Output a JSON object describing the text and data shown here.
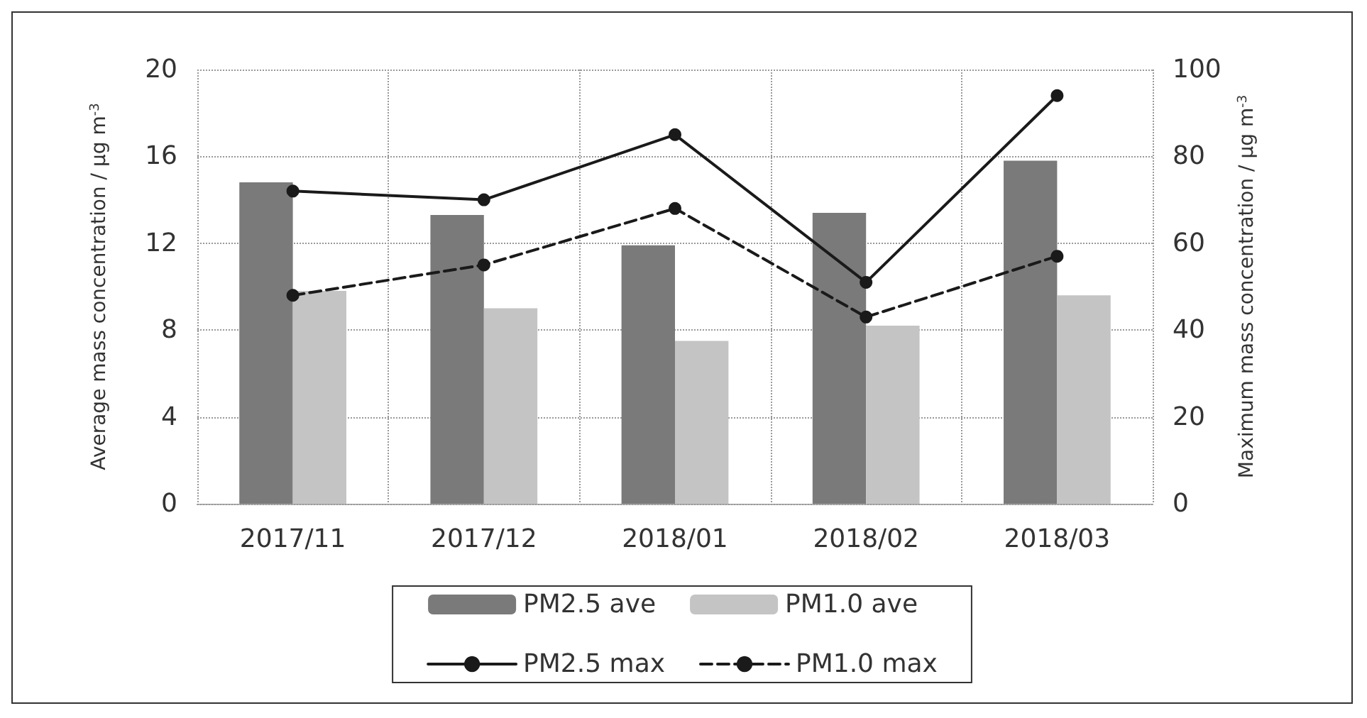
{
  "chart_data": {
    "type": "bar",
    "categories": [
      "2017/11",
      "2017/12",
      "2018/01",
      "2018/02",
      "2018/03"
    ],
    "ylabel": "Average mass concentration / μg m$^{-3}$",
    "y2label": "Maximum mass concentration / μg m$^{-3}$",
    "series": [
      {
        "name": "PM2.5 ave",
        "color": "#7a7a7a",
        "values": [
          14.8,
          13.3,
          11.9,
          13.4,
          15.8
        ]
      },
      {
        "name": "PM1.0 ave",
        "color": "#c4c4c4",
        "values": [
          9.8,
          9.0,
          7.5,
          8.2,
          9.6
        ]
      },
      {
        "name": "PM2.5 max",
        "type": "line",
        "axis": "y2",
        "color": "#1a1a1a",
        "marker": "circle",
        "line_style": "solid",
        "values": [
          72,
          70,
          85,
          51,
          94
        ]
      },
      {
        "name": "PM1.0 max",
        "type": "line",
        "axis": "y2",
        "color": "#1a1a1a",
        "marker": "circle",
        "line_style": "dashed",
        "values": [
          48,
          55,
          68,
          43,
          57
        ]
      }
    ],
    "ylim": [
      0,
      20
    ],
    "yticks": [
      0,
      4,
      8,
      12,
      16,
      20
    ],
    "y2lim": [
      0,
      100
    ],
    "y2ticks": [
      0,
      20,
      40,
      60,
      80,
      100
    ],
    "grid": true,
    "legend": "bottom"
  }
}
